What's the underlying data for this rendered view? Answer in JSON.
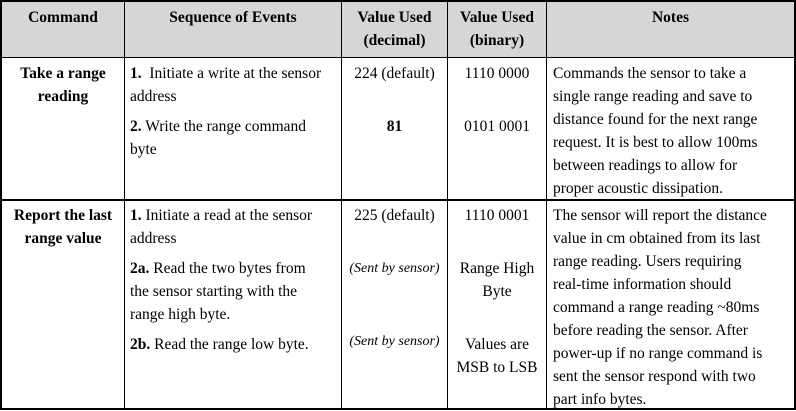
{
  "headers": {
    "command": "Command",
    "sequence": "Sequence of Events",
    "decimal_l1": "Value Used",
    "decimal_l2": "(decimal)",
    "binary_l1": "Value Used",
    "binary_l2": "(binary)",
    "notes": "Notes"
  },
  "rows": [
    {
      "command_l1": "Take a range",
      "command_l2": "reading",
      "steps": [
        {
          "num": "1.",
          "l1": "Initiate a write at the sensor",
          "l2": "address",
          "dec": "224 (default)",
          "bin": "1110 0000"
        },
        {
          "num": "2.",
          "l1": "Write the range command",
          "l2": "byte",
          "dec": "81",
          "bin": "0101 0001"
        }
      ],
      "notes": [
        "Commands the sensor to take a",
        "single range reading and save to",
        "distance found for the next range",
        "request.  It is best to allow 100ms",
        "between readings to allow for",
        "proper acoustic dissipation."
      ]
    },
    {
      "command_l1": "Report the last",
      "command_l2": "range value",
      "steps": [
        {
          "num": "1.",
          "l1": "Initiate a read at the sensor",
          "l2": "address",
          "dec": "225 (default)",
          "bin": "1110 0001"
        },
        {
          "num": "2a.",
          "l1": "Read the two bytes from",
          "l2": "the sensor starting with the",
          "l3": "range high byte.",
          "dec": "(Sent by sensor)",
          "bin_l1": "Range High",
          "bin_l2": "Byte"
        },
        {
          "num": "2b.",
          "l1": "Read the range low byte.",
          "dec": "(Sent by sensor)",
          "bin_l1": "Values are",
          "bin_l2": "MSB to LSB"
        }
      ],
      "notes": [
        "The sensor will report the distance",
        "value in cm obtained from its last",
        "range reading.  Users requiring",
        "real-time information should",
        "command a range reading ~80ms",
        "before reading the sensor.  After",
        "power-up if no range command is",
        "sent the sensor respond with two",
        "part info bytes."
      ]
    }
  ]
}
